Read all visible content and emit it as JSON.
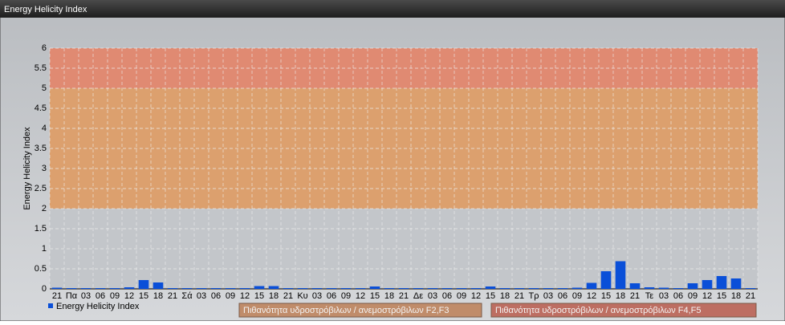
{
  "chart_data": {
    "type": "bar",
    "title": "Energy Helicity Index",
    "ylabel": "Energy Helicity Index",
    "categories": [
      "21",
      "Πα",
      "03",
      "06",
      "09",
      "12",
      "15",
      "18",
      "21",
      "Σά",
      "03",
      "06",
      "09",
      "12",
      "15",
      "18",
      "21",
      "Κυ",
      "03",
      "06",
      "09",
      "12",
      "15",
      "18",
      "21",
      "Δε",
      "03",
      "06",
      "09",
      "12",
      "15",
      "18",
      "21",
      "Τρ",
      "03",
      "06",
      "09",
      "12",
      "15",
      "18",
      "21",
      "Τε",
      "03",
      "06",
      "09",
      "12",
      "15",
      "18",
      "21"
    ],
    "series": [
      {
        "name": "Energy Helicity Index",
        "color": "#0a4fd8",
        "values": [
          0.03,
          0.02,
          0.02,
          0.02,
          0.02,
          0.04,
          0.22,
          0.16,
          0.02,
          0.02,
          0.02,
          0.02,
          0.02,
          0.02,
          0.07,
          0.07,
          0.02,
          0.02,
          0.02,
          0.02,
          0.02,
          0.02,
          0.06,
          0.02,
          0.02,
          0.02,
          0.02,
          0.02,
          0.02,
          0.02,
          0.06,
          0.02,
          0.02,
          0.02,
          0.02,
          0.02,
          0.03,
          0.15,
          0.44,
          0.69,
          0.14,
          0.04,
          0.03,
          0.02,
          0.14,
          0.22,
          0.32,
          0.26,
          0.02
        ]
      }
    ],
    "bands": [
      {
        "from": 0,
        "to": 2,
        "color": "#c3c6ca"
      },
      {
        "from": 2,
        "to": 5,
        "color": "#dca06e",
        "name": "Πιθανότητα υδροστρόβιλων / ανεμοστρόβιλων F2,F3",
        "legend_color": "#c08c6a"
      },
      {
        "from": 5,
        "to": 6,
        "color": "#e08a72",
        "name": "Πιθανότητα υδροστρόβιλων / ανεμοστρόβιλων F4,F5",
        "legend_color": "#bd6e62"
      }
    ],
    "ylim": [
      0,
      6
    ],
    "yticks": [
      0,
      0.5,
      1,
      1.5,
      2,
      2.5,
      3,
      3.5,
      4,
      4.5,
      5,
      5.5,
      6
    ],
    "grid": true
  }
}
